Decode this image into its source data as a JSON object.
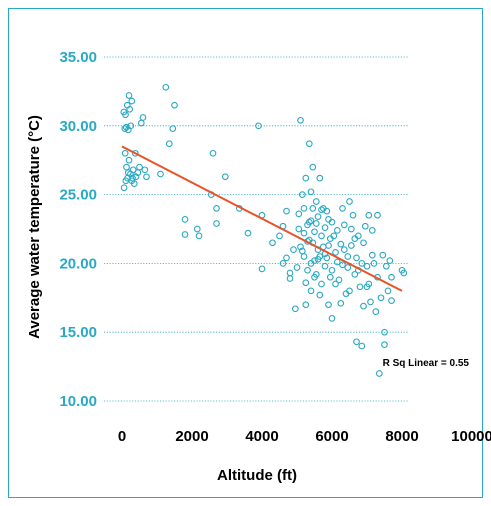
{
  "chart_data": {
    "type": "scatter",
    "xlabel": "Altitude (ft)",
    "ylabel": "Average water temperature (°C)",
    "xlim": [
      0,
      10000
    ],
    "ylim": [
      10,
      35
    ],
    "x_ticks": [
      "0",
      "2000",
      "4000",
      "6000",
      "8000",
      "10000"
    ],
    "y_ticks": [
      "10.00",
      "15.00",
      "20.00",
      "25.00",
      "30.00",
      "35.00"
    ],
    "grid": "horizontal dotted",
    "annotation": "R Sq Linear = 0.55",
    "fit_line": {
      "x": [
        0,
        8000
      ],
      "y": [
        28.5,
        18.0
      ]
    },
    "colors": {
      "points": "#2aa9c4",
      "fit_line": "#e8542a",
      "frame": "#2aa9c4"
    },
    "points": [
      [
        50,
        31.0
      ],
      [
        80,
        29.8
      ],
      [
        100,
        30.8
      ],
      [
        120,
        29.9
      ],
      [
        150,
        31.5
      ],
      [
        180,
        29.7
      ],
      [
        200,
        32.2
      ],
      [
        220,
        31.2
      ],
      [
        250,
        30.0
      ],
      [
        280,
        31.8
      ],
      [
        90,
        28.0
      ],
      [
        130,
        27.0
      ],
      [
        160,
        26.2
      ],
      [
        200,
        27.5
      ],
      [
        240,
        26.5
      ],
      [
        280,
        26.0
      ],
      [
        320,
        26.8
      ],
      [
        350,
        25.8
      ],
      [
        400,
        26.3
      ],
      [
        450,
        26.6
      ],
      [
        60,
        25.5
      ],
      [
        110,
        26.0
      ],
      [
        180,
        26.6
      ],
      [
        300,
        26.2
      ],
      [
        500,
        27.0
      ],
      [
        550,
        30.2
      ],
      [
        600,
        30.6
      ],
      [
        650,
        26.8
      ],
      [
        700,
        26.3
      ],
      [
        380,
        28.0
      ],
      [
        1250,
        32.8
      ],
      [
        1350,
        28.7
      ],
      [
        1450,
        29.8
      ],
      [
        1500,
        31.5
      ],
      [
        1100,
        26.5
      ],
      [
        1800,
        22.1
      ],
      [
        1800,
        23.2
      ],
      [
        2150,
        22.5
      ],
      [
        2200,
        22.0
      ],
      [
        2550,
        25.0
      ],
      [
        2600,
        28.0
      ],
      [
        2700,
        22.9
      ],
      [
        2700,
        24.0
      ],
      [
        2950,
        26.3
      ],
      [
        3350,
        24.0
      ],
      [
        3600,
        22.2
      ],
      [
        3900,
        30.0
      ],
      [
        4000,
        19.6
      ],
      [
        4000,
        23.5
      ],
      [
        4300,
        21.5
      ],
      [
        4500,
        22.0
      ],
      [
        4600,
        20.0
      ],
      [
        4700,
        23.8
      ],
      [
        4800,
        18.9
      ],
      [
        4900,
        21.0
      ],
      [
        4950,
        16.7
      ],
      [
        5000,
        19.7
      ],
      [
        5050,
        22.5
      ],
      [
        5100,
        21.2
      ],
      [
        5100,
        30.4
      ],
      [
        5150,
        25.0
      ],
      [
        5200,
        24.0
      ],
      [
        5200,
        20.5
      ],
      [
        5250,
        26.2
      ],
      [
        5250,
        17.0
      ],
      [
        5300,
        22.8
      ],
      [
        5300,
        19.5
      ],
      [
        5350,
        23.0
      ],
      [
        5350,
        28.7
      ],
      [
        5400,
        20.0
      ],
      [
        5400,
        25.2
      ],
      [
        5400,
        18.0
      ],
      [
        5450,
        21.5
      ],
      [
        5450,
        27.0
      ],
      [
        5500,
        22.3
      ],
      [
        5500,
        20.2
      ],
      [
        5550,
        24.5
      ],
      [
        5550,
        19.2
      ],
      [
        5600,
        23.4
      ],
      [
        5600,
        21.0
      ],
      [
        5650,
        26.2
      ],
      [
        5650,
        20.5
      ],
      [
        5700,
        22.0
      ],
      [
        5700,
        18.5
      ],
      [
        5750,
        24.0
      ],
      [
        5750,
        21.2
      ],
      [
        5800,
        19.8
      ],
      [
        5800,
        22.6
      ],
      [
        5850,
        20.4
      ],
      [
        5900,
        23.2
      ],
      [
        5900,
        17.0
      ],
      [
        5950,
        21.8
      ],
      [
        6000,
        19.5
      ],
      [
        6000,
        16.0
      ],
      [
        6100,
        20.8
      ],
      [
        6150,
        22.4
      ],
      [
        6200,
        18.8
      ],
      [
        6250,
        21.4
      ],
      [
        6300,
        24.0
      ],
      [
        6300,
        19.9
      ],
      [
        6350,
        22.8
      ],
      [
        6400,
        17.8
      ],
      [
        6450,
        20.5
      ],
      [
        6500,
        24.5
      ],
      [
        6500,
        18.0
      ],
      [
        6550,
        21.3
      ],
      [
        6600,
        23.5
      ],
      [
        6650,
        19.2
      ],
      [
        6700,
        20.4
      ],
      [
        6700,
        14.3
      ],
      [
        6750,
        22.0
      ],
      [
        6800,
        18.3
      ],
      [
        6850,
        14.0
      ],
      [
        6900,
        21.5
      ],
      [
        7000,
        19.8
      ],
      [
        7050,
        23.5
      ],
      [
        7100,
        17.2
      ],
      [
        7150,
        22.4
      ],
      [
        7200,
        20.0
      ],
      [
        7250,
        16.5
      ],
      [
        7300,
        23.5
      ],
      [
        7300,
        19.0
      ],
      [
        7350,
        12.0
      ],
      [
        7400,
        17.5
      ],
      [
        7450,
        20.6
      ],
      [
        7500,
        15.0
      ],
      [
        7550,
        19.8
      ],
      [
        7600,
        18.0
      ],
      [
        7650,
        20.2
      ],
      [
        7700,
        17.3
      ],
      [
        7700,
        19.0
      ],
      [
        8000,
        19.5
      ],
      [
        8050,
        19.3
      ],
      [
        6900,
        16.9
      ],
      [
        7000,
        18.3
      ],
      [
        7500,
        14.1
      ],
      [
        4600,
        22.7
      ],
      [
        4700,
        20.4
      ],
      [
        4800,
        19.3
      ],
      [
        5050,
        23.6
      ],
      [
        5150,
        20.9
      ],
      [
        5250,
        18.6
      ],
      [
        5350,
        21.7
      ],
      [
        5450,
        24.0
      ],
      [
        5550,
        22.9
      ],
      [
        5650,
        17.7
      ],
      [
        5850,
        23.8
      ],
      [
        5950,
        19.0
      ],
      [
        6050,
        22.0
      ],
      [
        6150,
        20.1
      ],
      [
        6250,
        17.1
      ],
      [
        6350,
        21.0
      ],
      [
        6450,
        19.7
      ],
      [
        6550,
        22.5
      ],
      [
        6650,
        21.8
      ],
      [
        6750,
        19.5
      ],
      [
        6850,
        20.0
      ],
      [
        6950,
        22.7
      ],
      [
        7050,
        18.5
      ],
      [
        7150,
        20.6
      ],
      [
        5200,
        22.2
      ],
      [
        5300,
        21.6
      ],
      [
        5400,
        23.1
      ],
      [
        5500,
        19.0
      ],
      [
        5600,
        20.3
      ],
      [
        5700,
        23.9
      ],
      [
        5800,
        20.7
      ],
      [
        5900,
        21.3
      ],
      [
        6000,
        23.0
      ],
      [
        6100,
        18.5
      ]
    ]
  }
}
